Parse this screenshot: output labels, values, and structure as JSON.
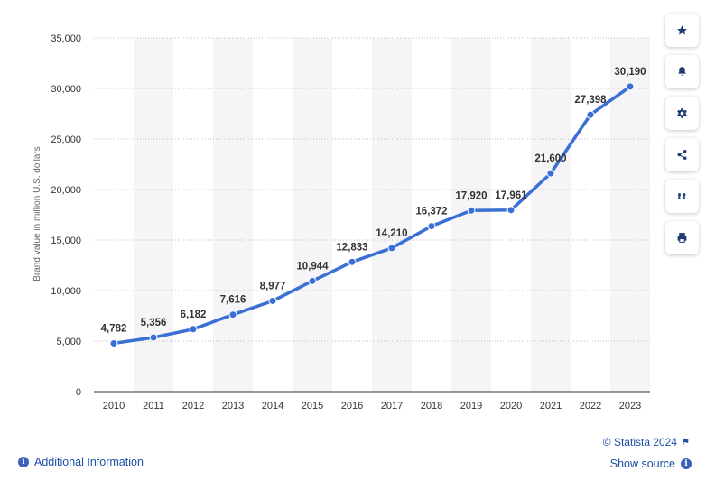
{
  "chart_data": {
    "type": "line",
    "x": [
      "2010",
      "2011",
      "2012",
      "2013",
      "2014",
      "2015",
      "2016",
      "2017",
      "2018",
      "2019",
      "2020",
      "2021",
      "2022",
      "2023"
    ],
    "values": [
      4782,
      5356,
      6182,
      7616,
      8977,
      10944,
      12833,
      14210,
      16372,
      17920,
      17961,
      21600,
      27398,
      30190
    ],
    "value_labels": [
      "4,782",
      "5,356",
      "6,182",
      "7,616",
      "8,977",
      "10,944",
      "12,833",
      "14,210",
      "16,372",
      "17,920",
      "17,961",
      "21,600",
      "27,398",
      "30,190"
    ],
    "ylabel": "Brand value in million U.S. dollars",
    "ylim": [
      0,
      35000
    ],
    "yticks": [
      0,
      5000,
      10000,
      15000,
      20000,
      25000,
      30000,
      35000
    ],
    "ytick_labels": [
      "0",
      "5,000",
      "10,000",
      "15,000",
      "20,000",
      "25,000",
      "30,000",
      "35,000"
    ],
    "grid": "horizontal dotted",
    "alternating_column_bands": true,
    "colors": {
      "line": "#3a6fd6",
      "band": "#f5f5f7",
      "grid": "#bfbfbf"
    }
  },
  "sidebar": {
    "buttons": [
      {
        "name": "favorite-button",
        "icon": "star-icon"
      },
      {
        "name": "notification-button",
        "icon": "bell-icon"
      },
      {
        "name": "settings-button",
        "icon": "gear-icon"
      },
      {
        "name": "share-button",
        "icon": "share-icon"
      },
      {
        "name": "cite-button",
        "icon": "quote-icon"
      },
      {
        "name": "print-button",
        "icon": "printer-icon"
      }
    ]
  },
  "footer": {
    "additional_info": "Additional Information",
    "credit": "© Statista 2024",
    "show_source": "Show source"
  }
}
